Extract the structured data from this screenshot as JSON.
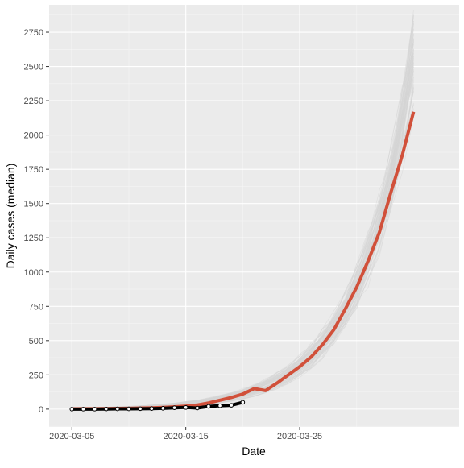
{
  "chart_data": {
    "type": "line",
    "title": "",
    "xlabel": "Date",
    "ylabel": "Daily cases (median)",
    "x_range": [
      "2020-03-03",
      "2020-04-08"
    ],
    "ylim": [
      -130,
      2950
    ],
    "x_ticks": [
      "2020-03-05",
      "2020-03-15",
      "2020-03-25"
    ],
    "y_ticks": [
      0,
      250,
      500,
      750,
      1000,
      1250,
      1500,
      1750,
      2000,
      2250,
      2500,
      2750
    ],
    "grid": true,
    "legend": "none",
    "background": "#ebebeb",
    "series": [
      {
        "style": "median-projection",
        "color": "#d1503a",
        "x": [
          "2020-03-05",
          "2020-03-06",
          "2020-03-07",
          "2020-03-08",
          "2020-03-09",
          "2020-03-10",
          "2020-03-11",
          "2020-03-12",
          "2020-03-13",
          "2020-03-14",
          "2020-03-15",
          "2020-03-16",
          "2020-03-17",
          "2020-03-18",
          "2020-03-19",
          "2020-03-20",
          "2020-03-21",
          "2020-03-22",
          "2020-03-23",
          "2020-03-24",
          "2020-03-25",
          "2020-03-26",
          "2020-03-27",
          "2020-03-28",
          "2020-03-29",
          "2020-03-30",
          "2020-03-31",
          "2020-04-01",
          "2020-04-02",
          "2020-04-03",
          "2020-04-04"
        ],
        "y": [
          2,
          3,
          3,
          4,
          5,
          6,
          8,
          10,
          13,
          17,
          22,
          30,
          45,
          65,
          85,
          110,
          150,
          135,
          190,
          250,
          310,
          380,
          470,
          580,
          730,
          890,
          1080,
          1290,
          1580,
          1850,
          2170
        ]
      },
      {
        "style": "observed",
        "color": "#000000",
        "x": [
          "2020-03-05",
          "2020-03-06",
          "2020-03-07",
          "2020-03-08",
          "2020-03-09",
          "2020-03-10",
          "2020-03-11",
          "2020-03-12",
          "2020-03-13",
          "2020-03-14",
          "2020-03-15",
          "2020-03-16",
          "2020-03-17",
          "2020-03-18",
          "2020-03-19",
          "2020-03-20"
        ],
        "y": [
          0,
          0,
          0,
          1,
          2,
          2,
          3,
          4,
          6,
          10,
          12,
          8,
          20,
          25,
          28,
          50
        ]
      }
    ],
    "simulations": {
      "style": "simulated-trajectories",
      "color": "#d6d6d6",
      "count": 80,
      "start": "2020-03-05",
      "end": "2020-04-04",
      "end_range": [
        2200,
        2820
      ]
    }
  }
}
